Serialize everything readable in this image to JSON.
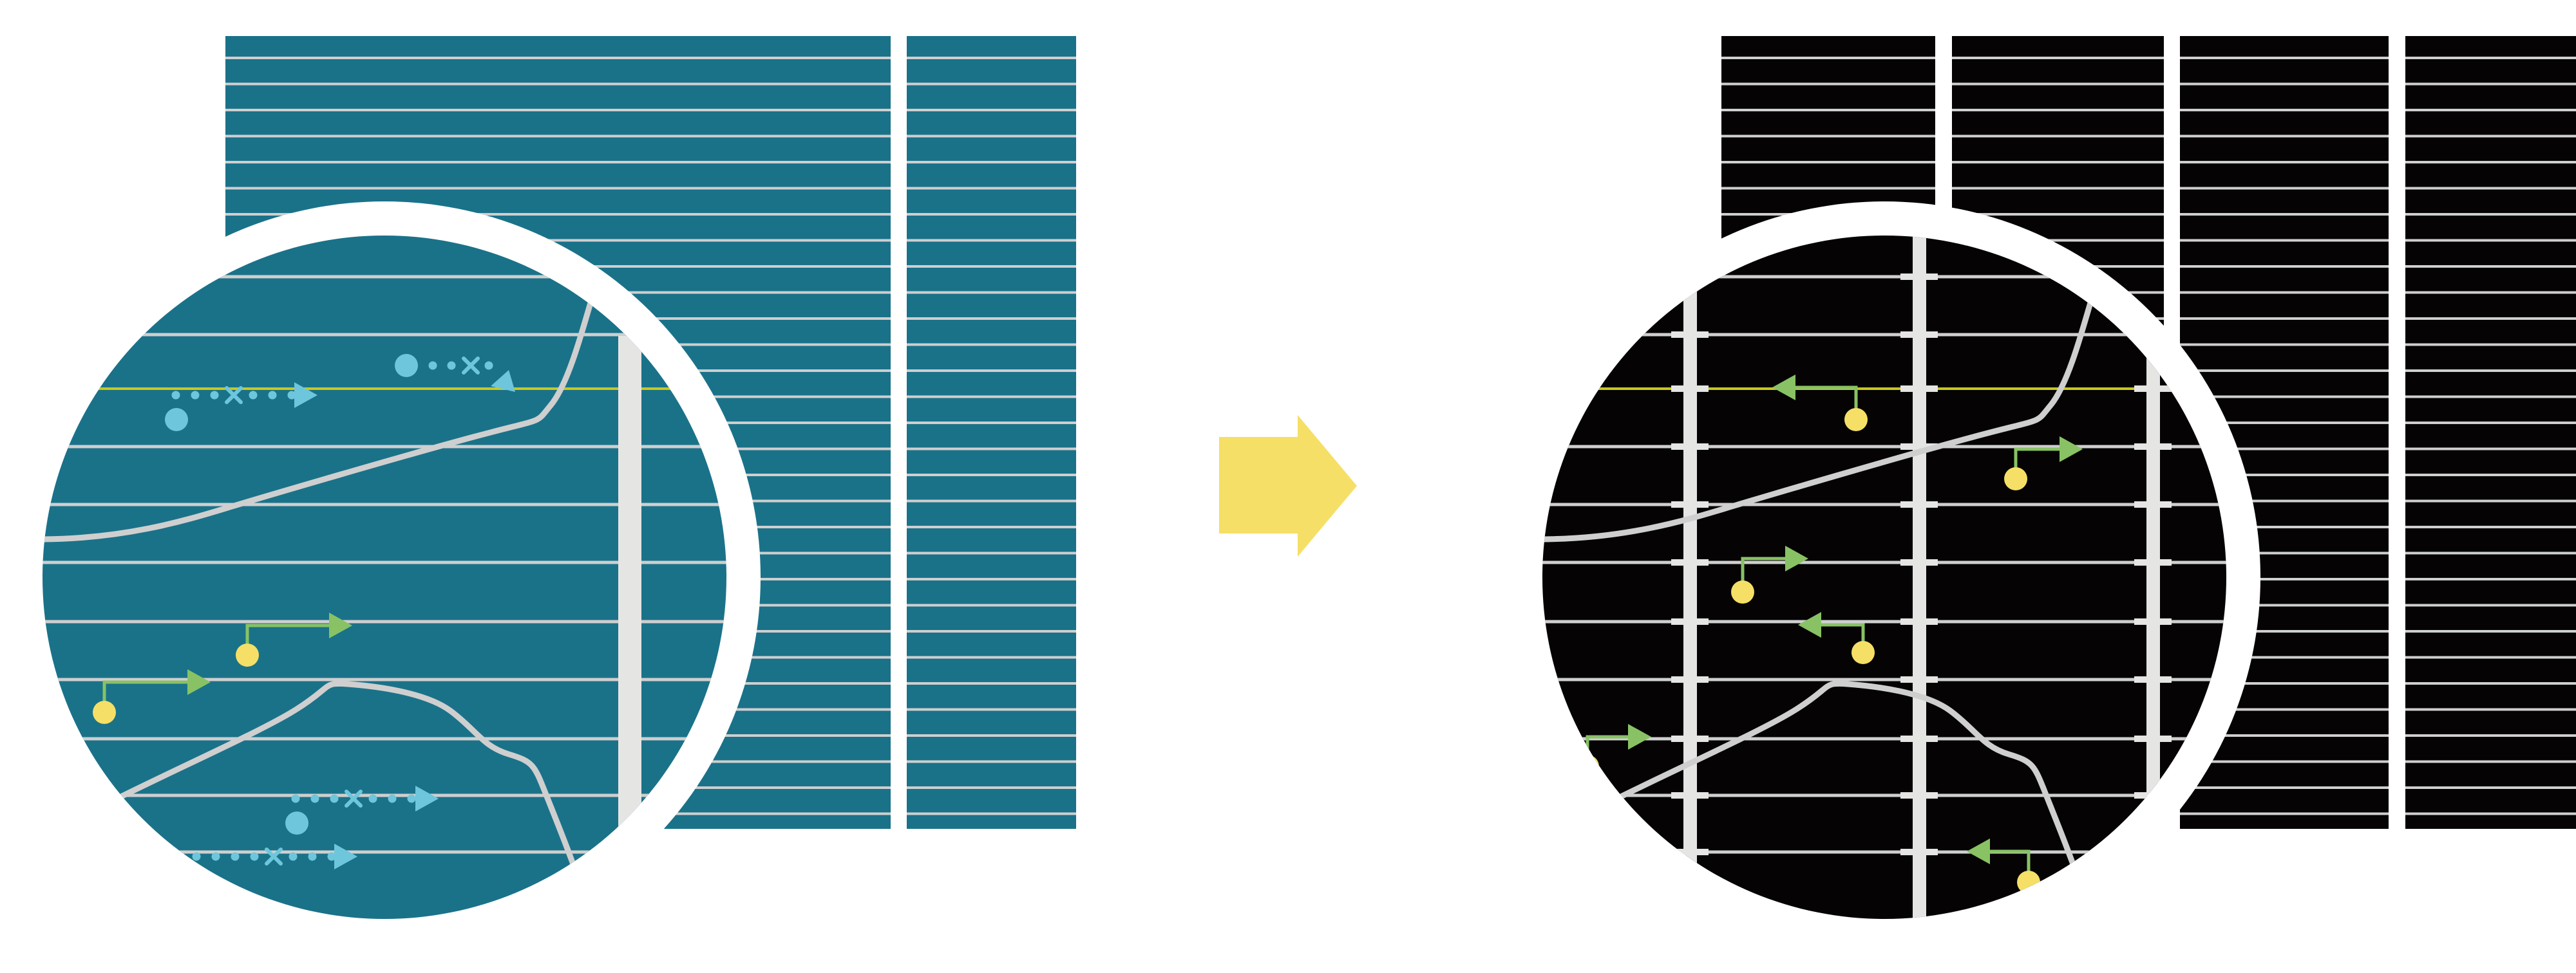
{
  "colors": {
    "background": "#ffffff",
    "before_fill": "#1a7289",
    "after_fill": "#050304",
    "grid_line": "#cfcfcf",
    "highlight_line": "#c8c81e",
    "blue_marker": "#6ec6dc",
    "green_arrow": "#88c264",
    "yellow_dot": "#f5df66",
    "bar": "#e5e5e3",
    "transition_arrow": "#f5df66",
    "ring": "#ffffff"
  },
  "icons": {
    "transition": "right-arrow-icon",
    "blue_path": "dotted-arrow-icon",
    "green_path": "elbow-arrow-icon"
  }
}
